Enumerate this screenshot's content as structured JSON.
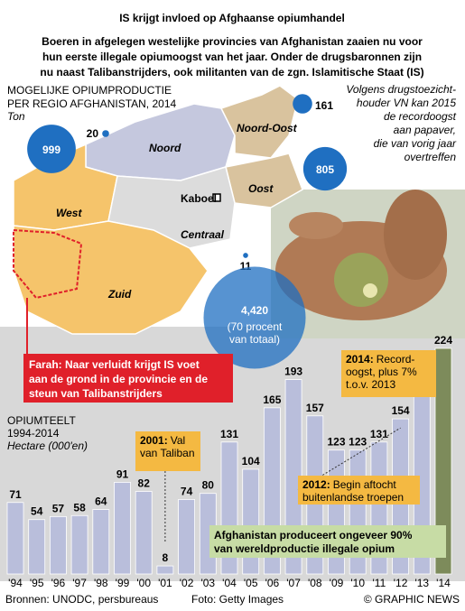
{
  "chart_data": {
    "type": "bar",
    "title": "IS krijgt invloed op Afghaanse opiumhandel",
    "subtitle": [
      "Boeren in afgelegen westelijke provincies van Afghanistan zaaien nu voor",
      "hun eerste illegale opiumoogst van het jaar. Onder de drugsbaronnen zijn",
      "nu naast Talibanstrijders, ook militanten van de zgn. Islamitische Staat (IS)"
    ],
    "map": {
      "title": [
        "MOGELIJKE OPIUMPRODUCTIE",
        "PER REGIO AFGHANISTAN, 2014"
      ],
      "unit": "Ton",
      "capital": "Kaboel",
      "regions": [
        "West",
        "Noord",
        "Noord-Oost",
        "Oost",
        "Centraal",
        "Zuid"
      ],
      "values": [
        999,
        20,
        161,
        805,
        11,
        4420
      ],
      "value_labels": [
        "999",
        "20",
        "161",
        "805",
        "11",
        "4,420"
      ],
      "zuid_note": [
        "(70 procent",
        "van totaal)"
      ],
      "color": "#1f6fc1"
    },
    "note": [
      "Volgens drugstoezicht-",
      "houder VN kan 2015",
      "de recordoogst",
      "aan papaver,",
      "die van vorig jaar",
      "overtreffen"
    ],
    "farah": [
      "Farah: Naar verluidt krijgt IS voet",
      "aan de grond in de provincie en de",
      "steun van Talibanstrijders"
    ],
    "chart_title": [
      "OPIUMTEELT",
      "1994-2014"
    ],
    "y_label": "Hectare (000'en)",
    "categories": [
      "'94",
      "'95",
      "'96",
      "'97",
      "'98",
      "'99",
      "'00",
      "'01",
      "'02",
      "'03",
      "'04",
      "'05",
      "'06",
      "'07",
      "'08",
      "'09",
      "'10",
      "'11",
      "'12",
      "'13",
      "'14"
    ],
    "values": [
      71,
      54,
      57,
      58,
      64,
      91,
      82,
      8,
      74,
      80,
      131,
      104,
      165,
      193,
      157,
      123,
      123,
      131,
      154,
      209,
      224
    ],
    "color": "#b9bedb",
    "highlight_color": "#7d8b5b",
    "annotations": [
      {
        "bold": "2001:",
        "lines": [
          "Val",
          "van Taliban"
        ]
      },
      {
        "bold": "2014:",
        "lines": [
          "Record-",
          "oogst, plus 7%",
          "t.o.v. 2013"
        ]
      },
      {
        "bold": "2012:",
        "lines": [
          "Begin aftocht",
          "buitenlandse troepen"
        ]
      }
    ],
    "footnote": [
      "Afghanistan produceert ongeveer 90%",
      "van wereldproductie illegale opium"
    ],
    "source": "Bronnen: UNODC, persbureaus",
    "photo_credit": "Foto: Getty Images",
    "copyright": "© GRAPHIC NEWS"
  }
}
